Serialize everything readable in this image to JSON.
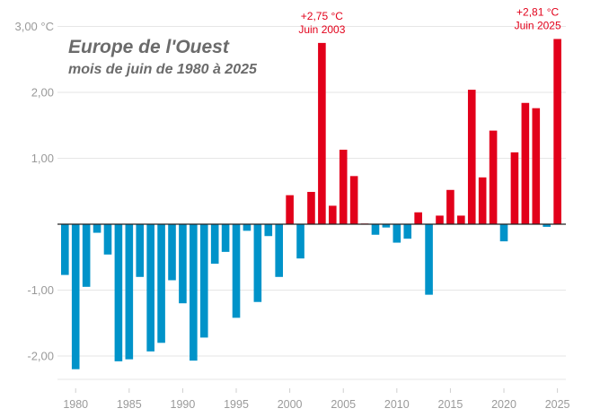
{
  "chart_data": {
    "type": "bar",
    "title": "Europe de l'Ouest",
    "subtitle": "mois de juin de 1980 à 2025",
    "ylim": [
      -2.5,
      3.05
    ],
    "y_ticks": [
      {
        "value": 3,
        "label": "3,00 °C"
      },
      {
        "value": 2,
        "label": "2,00"
      },
      {
        "value": 1,
        "label": "1,00"
      },
      {
        "value": -1,
        "label": "-1,00"
      },
      {
        "value": -2,
        "label": "-2,00"
      }
    ],
    "x_ticks": [
      "1980",
      "1985",
      "1990",
      "1995",
      "2000",
      "2005",
      "2010",
      "2015",
      "2020",
      "2025"
    ],
    "colors": {
      "positive": "#e2001a",
      "negative": "#0093c9"
    },
    "x": [
      1979,
      1980,
      1981,
      1982,
      1983,
      1984,
      1985,
      1986,
      1987,
      1988,
      1989,
      1990,
      1991,
      1992,
      1993,
      1994,
      1995,
      1996,
      1997,
      1998,
      1999,
      2000,
      2001,
      2002,
      2003,
      2004,
      2005,
      2006,
      2007,
      2008,
      2009,
      2010,
      2011,
      2012,
      2013,
      2014,
      2015,
      2016,
      2017,
      2018,
      2019,
      2020,
      2021,
      2022,
      2023,
      2024,
      2025
    ],
    "values": [
      -0.77,
      -2.2,
      -0.95,
      -0.13,
      -0.46,
      -2.08,
      -2.05,
      -0.8,
      -1.93,
      -1.8,
      -0.85,
      -1.2,
      -2.07,
      -1.72,
      -0.6,
      -0.42,
      -1.42,
      -0.1,
      -1.18,
      -0.18,
      -0.8,
      0.44,
      -0.52,
      0.49,
      2.75,
      0.28,
      1.13,
      0.73,
      0.01,
      -0.16,
      -0.05,
      -0.28,
      -0.22,
      0.18,
      -1.07,
      0.13,
      0.52,
      0.13,
      2.04,
      0.71,
      1.42,
      -0.26,
      1.09,
      1.84,
      1.76,
      -0.04,
      2.81
    ],
    "annotations": [
      {
        "year": 2003,
        "line1": "+2,75 °C",
        "line2": "Juin 2003"
      },
      {
        "year": 2025,
        "line1": "+2,81 °C",
        "line2": "Juin 2025"
      }
    ]
  }
}
